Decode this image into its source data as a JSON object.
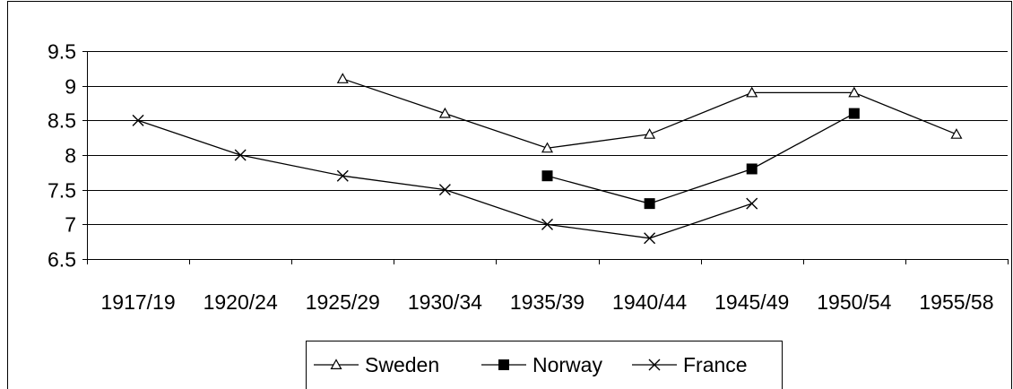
{
  "chart_data": {
    "type": "line",
    "categories": [
      "1917/19",
      "1920/24",
      "1925/29",
      "1930/34",
      "1935/39",
      "1940/44",
      "1945/49",
      "1950/54",
      "1955/58"
    ],
    "series": [
      {
        "name": "Sweden",
        "marker": "triangle-open",
        "values": [
          null,
          null,
          9.1,
          8.6,
          8.1,
          8.3,
          8.9,
          8.9,
          8.3
        ]
      },
      {
        "name": "Norway",
        "marker": "square-filled",
        "values": [
          null,
          null,
          null,
          null,
          7.7,
          7.3,
          7.8,
          8.6,
          null
        ]
      },
      {
        "name": "France",
        "marker": "x",
        "values": [
          8.5,
          8.0,
          7.7,
          7.5,
          7.0,
          6.8,
          7.3,
          null,
          null
        ]
      }
    ],
    "y_ticks": [
      "6.5",
      "7",
      "7.5",
      "8",
      "8.5",
      "9",
      "9.5"
    ],
    "ylim": [
      6.5,
      9.5
    ],
    "grid": true,
    "legend_position": "bottom",
    "colors": {
      "line": "#000000",
      "grid": "#000000",
      "background": "#ffffff"
    }
  }
}
